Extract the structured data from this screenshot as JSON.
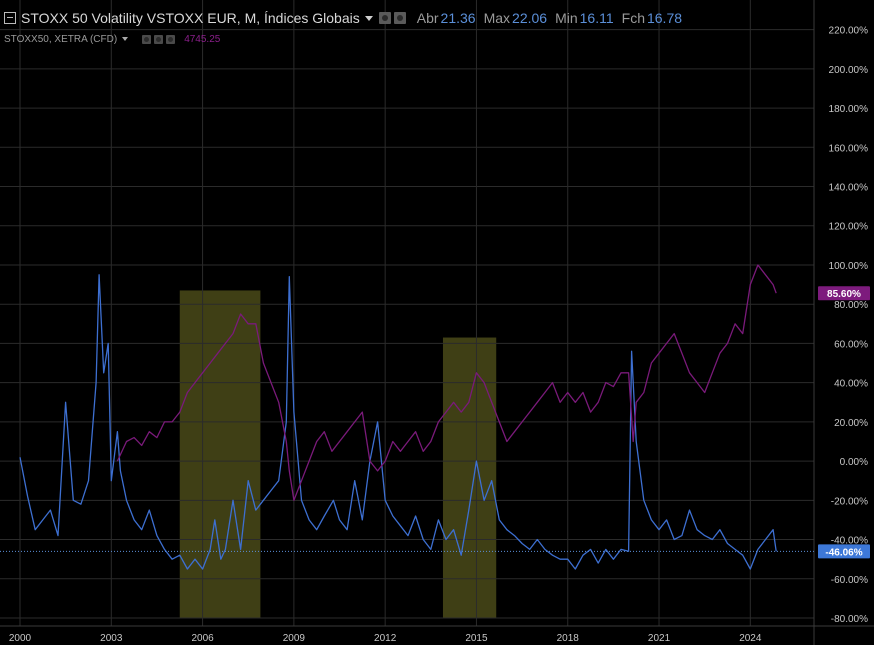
{
  "header": {
    "title": "STOXX 50 Volatility VSTOXX EUR, M, Índices Globais",
    "stats": [
      {
        "label": "Abr",
        "value": "21.36"
      },
      {
        "label": "Max",
        "value": "22.06"
      },
      {
        "label": "Min",
        "value": "16.11"
      },
      {
        "label": "Fch",
        "value": "16.78"
      }
    ]
  },
  "secondary": {
    "name": "STOXX50, XETRA (CFD)",
    "value": "4745.25"
  },
  "colors": {
    "background": "#000000",
    "grid": "#2b2b2b",
    "volatility": "#3d6fd1",
    "index": "#7a1a7a",
    "highlight": "#5a5a1e",
    "axis_text": "#c8c8c8",
    "baseline": "#5b8fd8",
    "index_badge": "#7d1b7d",
    "vol_badge": "#3d78d8"
  },
  "chart_data": {
    "type": "line",
    "x_ticks": [
      "2000",
      "2003",
      "2006",
      "2009",
      "2012",
      "2015",
      "2018",
      "2021",
      "2024"
    ],
    "y_ticks": [
      "220.00%",
      "200.00%",
      "180.00%",
      "160.00%",
      "140.00%",
      "120.00%",
      "100.00%",
      "80.00%",
      "60.00%",
      "40.00%",
      "20.00%",
      "0.00%",
      "-20.00%",
      "-40.00%",
      "-60.00%",
      "-80.00%"
    ],
    "xlim": [
      2000.0,
      2026.75
    ],
    "ylim": [
      -80,
      230
    ],
    "grid": true,
    "highlight_ranges": [
      {
        "x0": 2005.25,
        "x1": 2007.9,
        "top": 87
      },
      {
        "x0": 2013.9,
        "x1": 2015.65,
        "top": 63
      }
    ],
    "last_values": {
      "index": "85.60%",
      "volatility": "-46.06%"
    },
    "series": [
      {
        "key": "volatility",
        "x": [
          2000.0,
          2000.25,
          2000.5,
          2000.75,
          2001.0,
          2001.25,
          2001.5,
          2001.75,
          2002.0,
          2002.25,
          2002.5,
          2002.6,
          2002.75,
          2002.9,
          2003.0,
          2003.2,
          2003.3,
          2003.5,
          2003.75,
          2004.0,
          2004.25,
          2004.5,
          2004.75,
          2005.0,
          2005.25,
          2005.5,
          2005.75,
          2006.0,
          2006.25,
          2006.4,
          2006.6,
          2006.75,
          2007.0,
          2007.25,
          2007.5,
          2007.75,
          2008.0,
          2008.25,
          2008.5,
          2008.75,
          2008.85,
          2009.0,
          2009.25,
          2009.5,
          2009.75,
          2010.0,
          2010.3,
          2010.5,
          2010.75,
          2011.0,
          2011.25,
          2011.5,
          2011.75,
          2012.0,
          2012.25,
          2012.5,
          2012.75,
          2013.0,
          2013.25,
          2013.5,
          2013.75,
          2014.0,
          2014.25,
          2014.5,
          2014.75,
          2015.0,
          2015.25,
          2015.5,
          2015.75,
          2016.0,
          2016.25,
          2016.5,
          2016.75,
          2017.0,
          2017.25,
          2017.5,
          2017.75,
          2018.0,
          2018.25,
          2018.5,
          2018.75,
          2019.0,
          2019.25,
          2019.5,
          2019.75,
          2020.0,
          2020.1,
          2020.25,
          2020.5,
          2020.75,
          2021.0,
          2021.25,
          2021.5,
          2021.75,
          2022.0,
          2022.25,
          2022.5,
          2022.75,
          2023.0,
          2023.25,
          2023.5,
          2023.75,
          2024.0,
          2024.25,
          2024.5,
          2024.75,
          2024.85
        ],
        "y": [
          2,
          -18,
          -35,
          -30,
          -25,
          -38,
          30,
          -20,
          -22,
          -10,
          40,
          95,
          45,
          60,
          -10,
          15,
          -5,
          -20,
          -30,
          -35,
          -25,
          -38,
          -45,
          -50,
          -48,
          -55,
          -50,
          -55,
          -45,
          -30,
          -50,
          -45,
          -20,
          -45,
          -10,
          -25,
          -20,
          -15,
          -10,
          20,
          94,
          25,
          -20,
          -30,
          -35,
          -28,
          -20,
          -30,
          -35,
          -10,
          -30,
          0,
          20,
          -20,
          -28,
          -33,
          -38,
          -28,
          -40,
          -45,
          -30,
          -40,
          -35,
          -48,
          -25,
          0,
          -20,
          -10,
          -30,
          -35,
          -38,
          -42,
          -45,
          -40,
          -45,
          -48,
          -50,
          -50,
          -55,
          -48,
          -45,
          -52,
          -45,
          -50,
          -45,
          -46,
          56,
          10,
          -20,
          -30,
          -35,
          -30,
          -40,
          -38,
          -25,
          -35,
          -38,
          -40,
          -35,
          -42,
          -45,
          -48,
          -55,
          -45,
          -40,
          -35,
          -46.06
        ]
      },
      {
        "key": "index",
        "x": [
          2003.2,
          2003.5,
          2003.75,
          2004.0,
          2004.25,
          2004.5,
          2004.75,
          2005.0,
          2005.25,
          2005.5,
          2005.75,
          2006.0,
          2006.25,
          2006.5,
          2006.75,
          2007.0,
          2007.25,
          2007.5,
          2007.75,
          2008.0,
          2008.25,
          2008.5,
          2008.75,
          2008.85,
          2009.0,
          2009.25,
          2009.5,
          2009.75,
          2010.0,
          2010.25,
          2010.5,
          2010.75,
          2011.0,
          2011.25,
          2011.5,
          2011.75,
          2012.0,
          2012.25,
          2012.5,
          2012.75,
          2013.0,
          2013.25,
          2013.5,
          2013.75,
          2014.0,
          2014.25,
          2014.5,
          2014.75,
          2015.0,
          2015.25,
          2015.5,
          2015.75,
          2016.0,
          2016.25,
          2016.5,
          2016.75,
          2017.0,
          2017.25,
          2017.5,
          2017.75,
          2018.0,
          2018.25,
          2018.5,
          2018.75,
          2019.0,
          2019.25,
          2019.5,
          2019.75,
          2020.0,
          2020.15,
          2020.25,
          2020.5,
          2020.75,
          2021.0,
          2021.25,
          2021.5,
          2021.75,
          2022.0,
          2022.25,
          2022.5,
          2022.75,
          2023.0,
          2023.25,
          2023.5,
          2023.75,
          2024.0,
          2024.25,
          2024.5,
          2024.75,
          2024.85
        ],
        "y": [
          0,
          10,
          12,
          8,
          15,
          12,
          20,
          20,
          25,
          35,
          40,
          45,
          50,
          55,
          60,
          65,
          75,
          70,
          70,
          50,
          40,
          30,
          10,
          -5,
          -20,
          -10,
          0,
          10,
          15,
          5,
          10,
          15,
          20,
          25,
          0,
          -5,
          0,
          10,
          5,
          10,
          15,
          5,
          10,
          20,
          25,
          30,
          25,
          30,
          45,
          40,
          30,
          20,
          10,
          15,
          20,
          25,
          30,
          35,
          40,
          30,
          35,
          30,
          35,
          25,
          30,
          40,
          38,
          45,
          45,
          10,
          30,
          35,
          50,
          55,
          60,
          65,
          55,
          45,
          40,
          35,
          45,
          55,
          60,
          70,
          65,
          90,
          100,
          95,
          90,
          85.6
        ]
      }
    ]
  }
}
